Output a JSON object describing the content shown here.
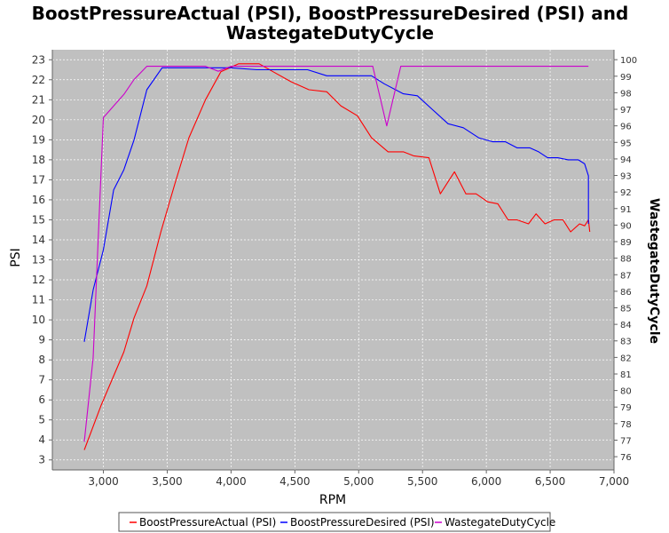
{
  "chart_data": {
    "type": "line",
    "title_lines": [
      "BoostPressureActual (PSI), BoostPressureDesired (PSI) and",
      "WastegateDutyCycle"
    ],
    "xlabel": "RPM",
    "ylabel_left": "PSI",
    "ylabel_right": "WastegateDutyCycle",
    "xlim": [
      2600,
      7000
    ],
    "ylim_left": [
      2.5,
      23.5
    ],
    "ylim_right": [
      75.2,
      100.6
    ],
    "x_ticks": [
      3000,
      3500,
      4000,
      4500,
      5000,
      5500,
      6000,
      6500,
      7000
    ],
    "x_tick_labels": [
      "3,000",
      "3,500",
      "4,000",
      "4,500",
      "5,000",
      "5,500",
      "6,000",
      "6,500",
      "7,000"
    ],
    "y_ticks_left": [
      3,
      4,
      5,
      6,
      7,
      8,
      9,
      10,
      11,
      12,
      13,
      14,
      15,
      16,
      17,
      18,
      19,
      20,
      21,
      22,
      23
    ],
    "y_ticks_right": [
      76,
      77,
      78,
      79,
      80,
      81,
      82,
      83,
      84,
      85,
      86,
      87,
      88,
      89,
      90,
      91,
      92,
      93,
      94,
      95,
      96,
      97,
      98,
      99,
      100
    ],
    "grid": true,
    "legend_position": "bottom",
    "colors": {
      "plot_background": "#c0c0c0",
      "grid": "#ffffff"
    },
    "series": [
      {
        "name": "BoostPressureActual (PSI)",
        "color": "#ff0000",
        "axis": "left",
        "x": [
          2850,
          2980,
          3080,
          3160,
          3240,
          3340,
          3450,
          3560,
          3670,
          3800,
          3920,
          4060,
          4220,
          4330,
          4470,
          4610,
          4750,
          4860,
          4990,
          5100,
          5230,
          5350,
          5430,
          5550,
          5640,
          5750,
          5840,
          5920,
          6010,
          6090,
          6170,
          6240,
          6330,
          6390,
          6460,
          6530,
          6600,
          6660,
          6730,
          6770,
          6800,
          6810
        ],
        "y": [
          3.5,
          5.7,
          7.2,
          8.4,
          10.1,
          11.7,
          14.4,
          16.8,
          19.1,
          21.0,
          22.4,
          22.8,
          22.8,
          22.4,
          21.9,
          21.5,
          21.4,
          20.7,
          20.2,
          19.1,
          18.4,
          18.4,
          18.2,
          18.1,
          16.3,
          17.4,
          16.3,
          16.3,
          15.9,
          15.8,
          15.0,
          15.0,
          14.8,
          15.3,
          14.8,
          15.0,
          15.0,
          14.4,
          14.8,
          14.7,
          15.0,
          14.4
        ]
      },
      {
        "name": "BoostPressureDesired (PSI)",
        "color": "#0000ff",
        "axis": "left",
        "x": [
          2850,
          2920,
          3000,
          3080,
          3160,
          3240,
          3340,
          3460,
          3600,
          3800,
          4000,
          4200,
          4400,
          4600,
          4750,
          4900,
          5000,
          5100,
          5200,
          5350,
          5460,
          5580,
          5700,
          5820,
          5940,
          6050,
          6150,
          6240,
          6340,
          6410,
          6480,
          6560,
          6640,
          6720,
          6770,
          6800,
          6800
        ],
        "y": [
          8.9,
          11.5,
          13.5,
          16.5,
          17.5,
          19.0,
          21.5,
          22.6,
          22.6,
          22.6,
          22.6,
          22.5,
          22.5,
          22.5,
          22.2,
          22.2,
          22.2,
          22.2,
          21.8,
          21.3,
          21.2,
          20.5,
          19.8,
          19.6,
          19.1,
          18.9,
          18.9,
          18.6,
          18.6,
          18.4,
          18.1,
          18.1,
          18.0,
          18.0,
          17.8,
          17.2,
          14.8
        ]
      },
      {
        "name": "WastegateDutyCycle",
        "color": "#cc00cc",
        "axis": "right",
        "x": [
          2850,
          2920,
          3000,
          3080,
          3160,
          3240,
          3340,
          3460,
          3600,
          3800,
          3900,
          4000,
          4200,
          4400,
          4600,
          4800,
          5000,
          5110,
          5220,
          5330,
          5450,
          5600,
          5800,
          6000,
          6200,
          6400,
          6600,
          6800
        ],
        "y": [
          76.9,
          82.0,
          96.5,
          97.2,
          97.9,
          98.8,
          99.6,
          99.6,
          99.6,
          99.6,
          99.3,
          99.6,
          99.6,
          99.6,
          99.6,
          99.6,
          99.6,
          99.6,
          96.0,
          99.6,
          99.6,
          99.6,
          99.6,
          99.6,
          99.6,
          99.6,
          99.6,
          99.6
        ]
      }
    ]
  }
}
